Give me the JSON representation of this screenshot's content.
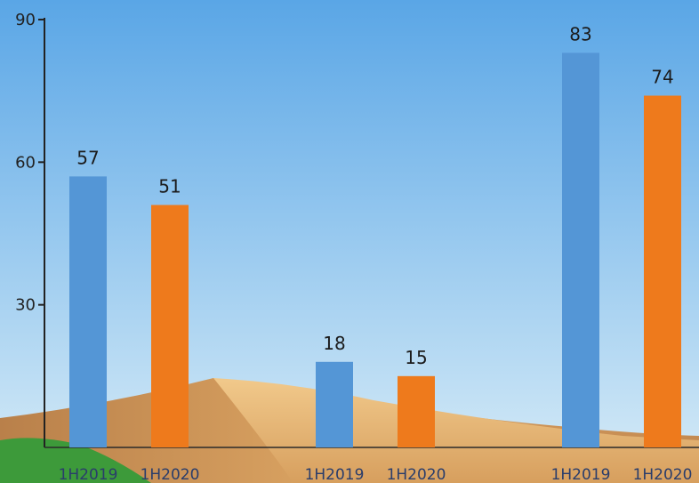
{
  "chart_data": {
    "type": "bar",
    "ylim": [
      0,
      90
    ],
    "yticks": [
      30,
      60,
      90
    ],
    "groups": [
      {
        "bars": [
          {
            "label": "1H2019",
            "value": 57,
            "color": "#5496d6"
          },
          {
            "label": "1H2020",
            "value": 51,
            "color": "#ee7a1c"
          }
        ]
      },
      {
        "bars": [
          {
            "label": "1H2019",
            "value": 18,
            "color": "#5496d6"
          },
          {
            "label": "1H2020",
            "value": 15,
            "color": "#ee7a1c"
          }
        ]
      },
      {
        "bars": [
          {
            "label": "1H2019",
            "value": 83,
            "color": "#5496d6"
          },
          {
            "label": "1H2020",
            "value": 74,
            "color": "#ee7a1c"
          }
        ]
      }
    ],
    "grid": false,
    "legend": "none",
    "background": "sky-with-desert-dunes"
  }
}
